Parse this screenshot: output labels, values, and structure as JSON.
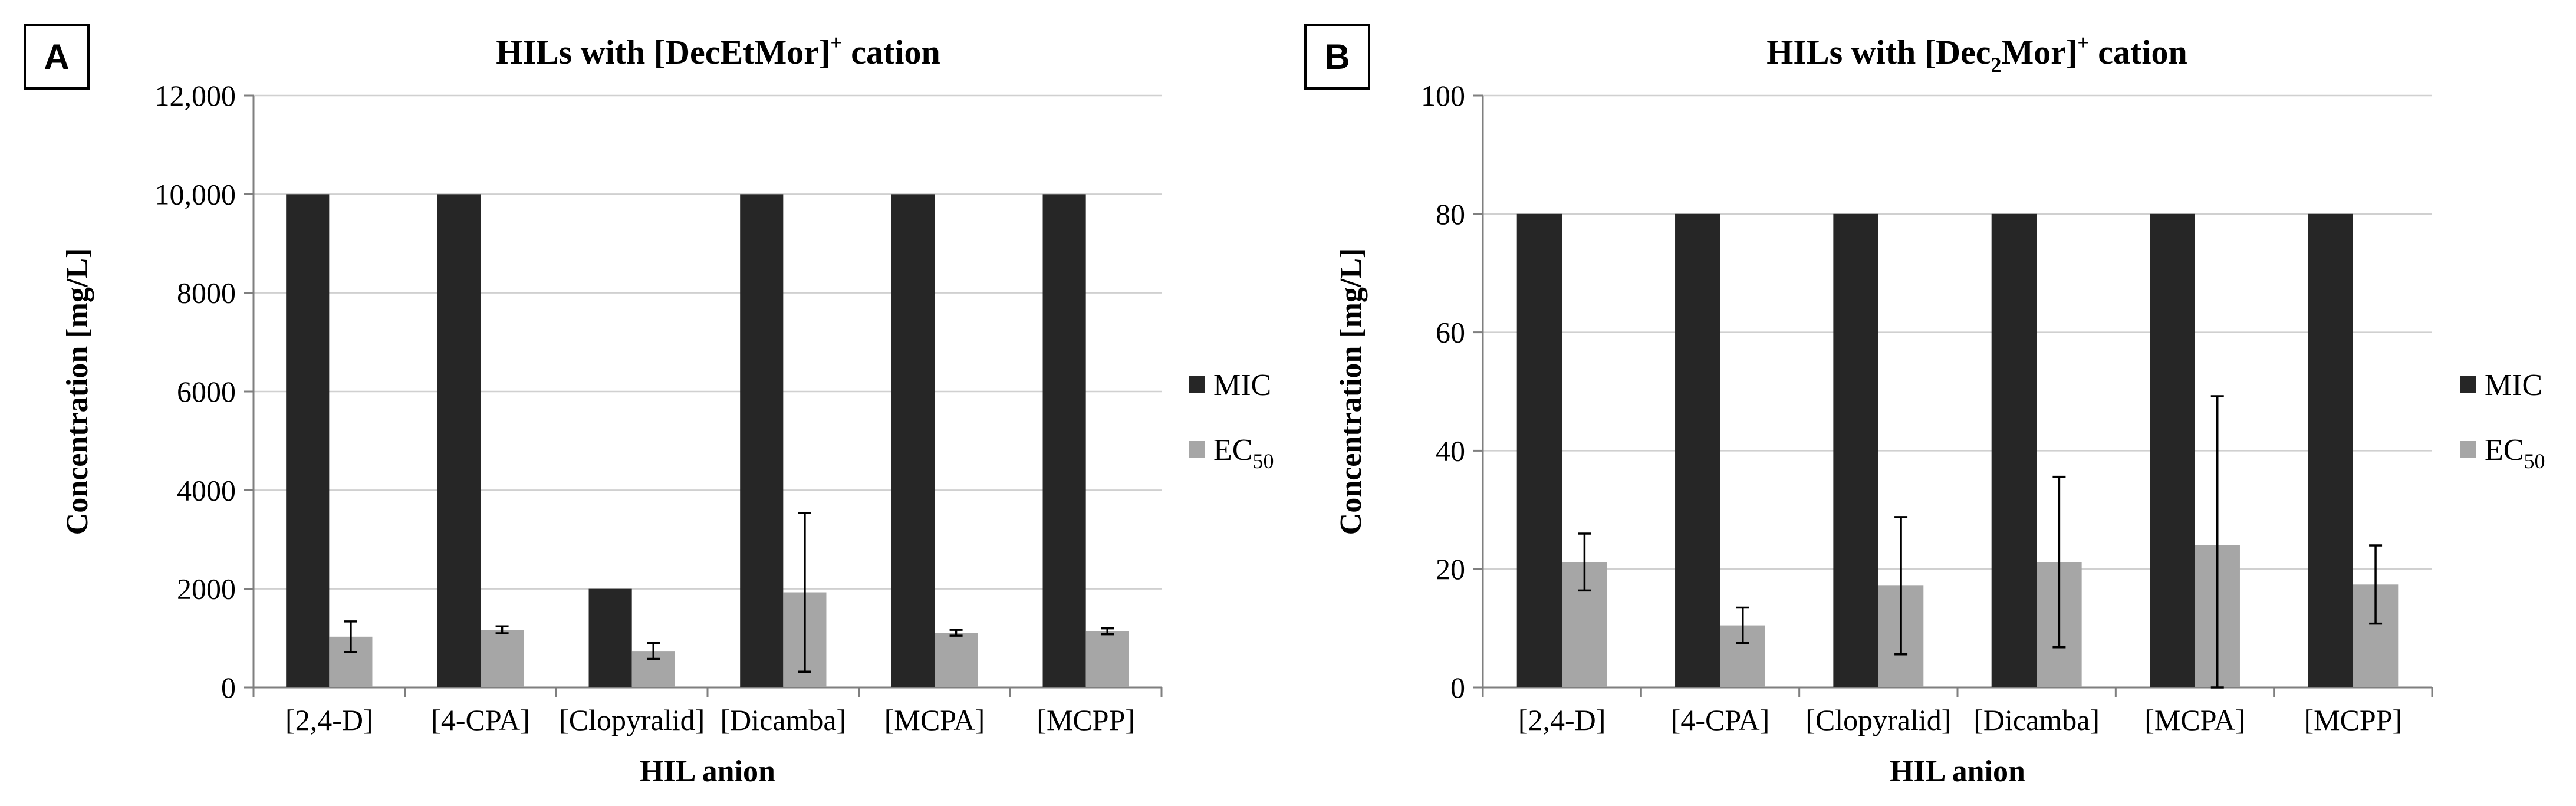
{
  "colors": {
    "mic": "#262626",
    "ec50": "#a6a6a6",
    "grid": "#d0d0d0",
    "axis": "#7f7f7f"
  },
  "chart_data": [
    {
      "type": "bar",
      "panel_label": "A",
      "title": {
        "main": "HILs with [DecEtMor]",
        "sup": "+",
        "tail": " cation"
      },
      "xlabel": "HIL anion",
      "ylabel": "Concentration  [mg/L]",
      "categories": [
        "[2,4-D]",
        "[4-CPA]",
        "[Clopyralid]",
        "[Dicamba]",
        "[MCPA]",
        "[MCPP]"
      ],
      "ylim": [
        0,
        12000
      ],
      "yticks": [
        0,
        2000,
        4000,
        6000,
        8000,
        10000,
        12000
      ],
      "ytick_labels": [
        "0",
        "2000",
        "4000",
        "6000",
        "8000",
        "10,000",
        "12,000"
      ],
      "legend_position": "right",
      "series": [
        {
          "name": "MIC",
          "name_sub": "",
          "color_key": "mic",
          "values": [
            10000,
            10000,
            2000,
            10000,
            10000,
            10000
          ]
        },
        {
          "name": "EC",
          "name_sub": "50",
          "color_key": "ec50",
          "values": [
            1030,
            1170,
            740,
            1930,
            1110,
            1140
          ],
          "errors": [
            310,
            70,
            160,
            1610,
            60,
            60
          ]
        }
      ]
    },
    {
      "type": "bar",
      "panel_label": "B",
      "title": {
        "main": "HILs with [Dec",
        "sub": "2",
        "main2": "Mor]",
        "sup": "+",
        "tail": " cation"
      },
      "xlabel": "HIL anion",
      "ylabel": "Concentration  [mg/L]",
      "categories": [
        "[2,4-D]",
        "[4-CPA]",
        "[Clopyralid]",
        "[Dicamba]",
        "[MCPA]",
        "[MCPP]"
      ],
      "ylim": [
        0,
        100
      ],
      "yticks": [
        0,
        20,
        40,
        60,
        80,
        100
      ],
      "ytick_labels": [
        "0",
        "20",
        "40",
        "60",
        "80",
        "100"
      ],
      "legend_position": "right",
      "series": [
        {
          "name": "MIC",
          "name_sub": "",
          "color_key": "mic",
          "values": [
            80,
            80,
            80,
            80,
            80,
            80
          ]
        },
        {
          "name": "EC",
          "name_sub": "50",
          "color_key": "ec50",
          "values": [
            21.2,
            10.5,
            17.2,
            21.2,
            24.1,
            17.4
          ],
          "errors": [
            4.8,
            3.0,
            11.6,
            14.4,
            25.1,
            6.6
          ]
        }
      ]
    }
  ]
}
